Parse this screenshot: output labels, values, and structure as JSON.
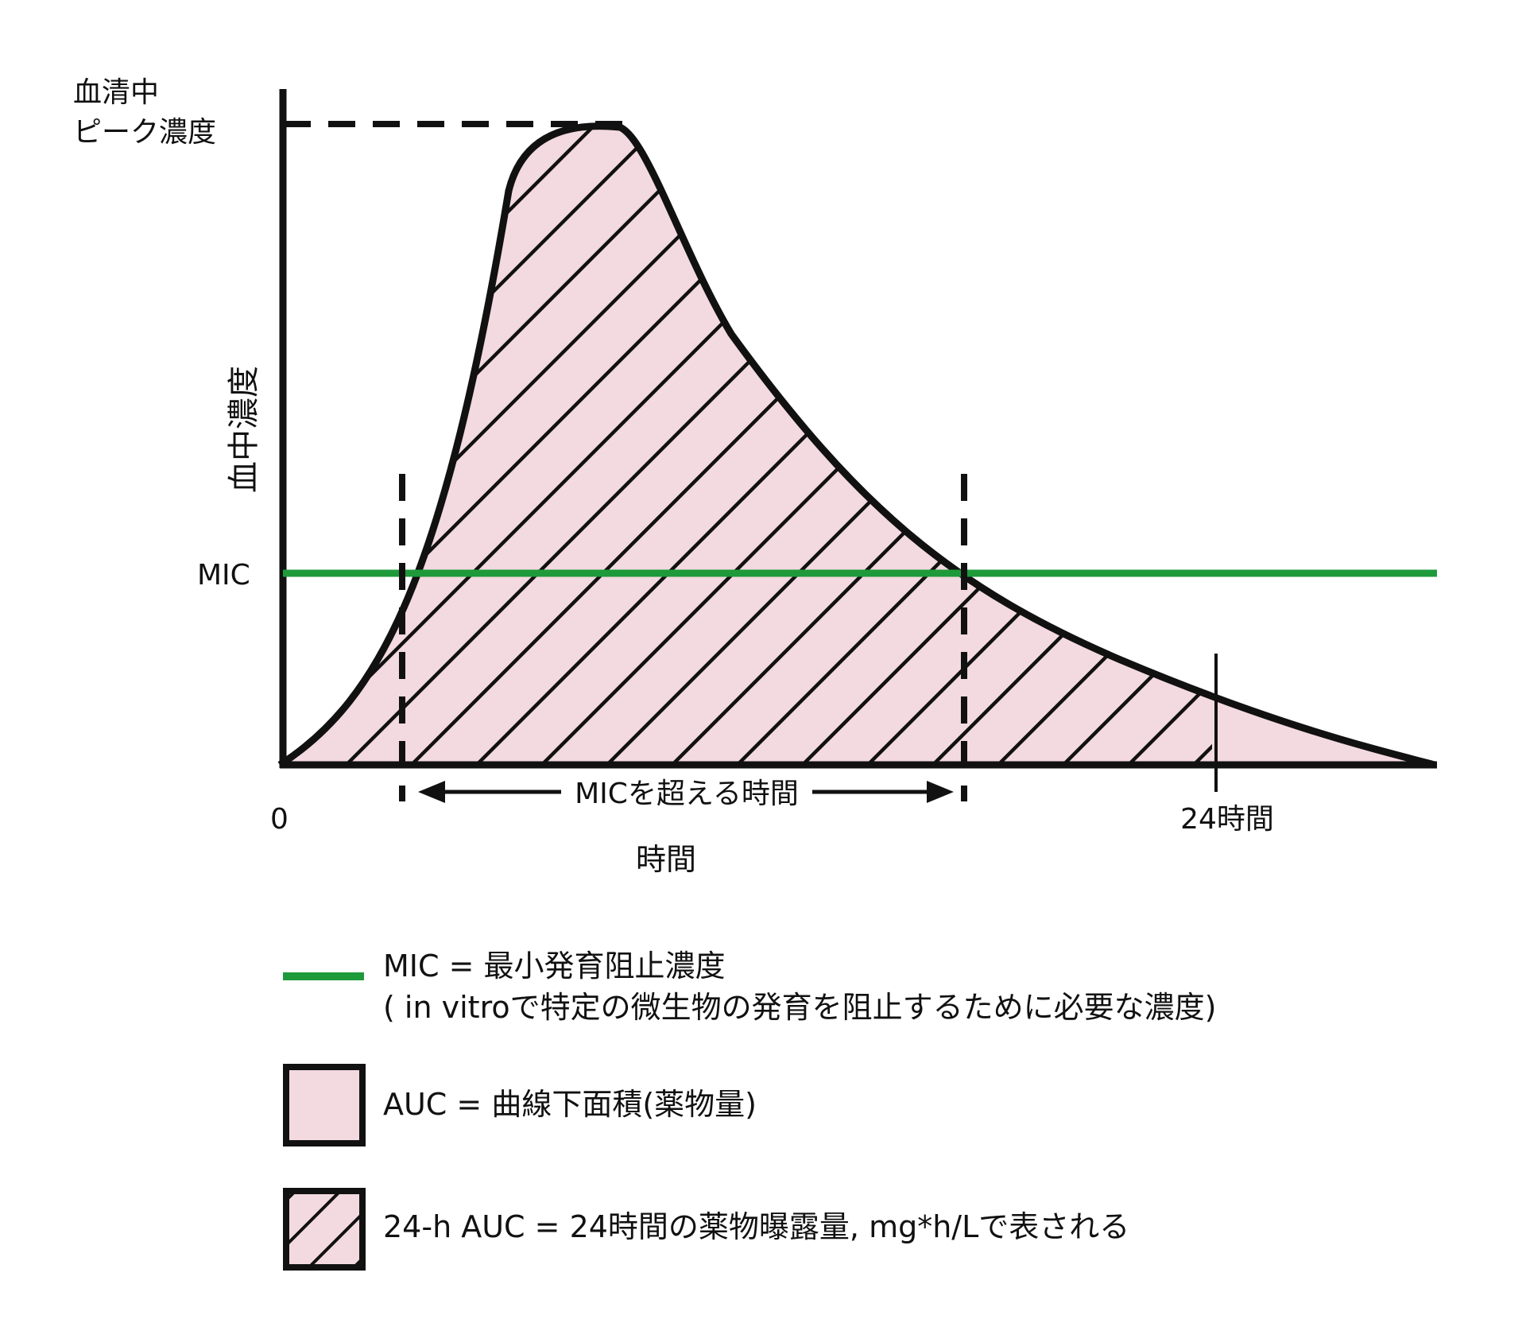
{
  "diagram": {
    "y_axis_peak_label_line1": "血清中",
    "y_axis_peak_label_line2": "ピーク濃度",
    "y_axis_title": "血中濃度",
    "mic_label": "MIC",
    "origin_label": "0",
    "x_axis_title": "時間",
    "marker_24h_label": "24時間",
    "time_above_mic_label": "MICを超える時間"
  },
  "legend": {
    "mic_line1": "MIC = 最小発育阻止濃度",
    "mic_line2": "( in vitroで特定の微生物の発育を阻止するために必要な濃度)",
    "auc": "AUC = 曲線下面積(薬物量)",
    "auc24": "24-h AUC = 24時間の薬物曝露量, mg*h/Lで表される"
  },
  "colors": {
    "mic_line": "#1e9a3a",
    "auc_fill": "#f3d9e0",
    "stroke": "#111111"
  }
}
